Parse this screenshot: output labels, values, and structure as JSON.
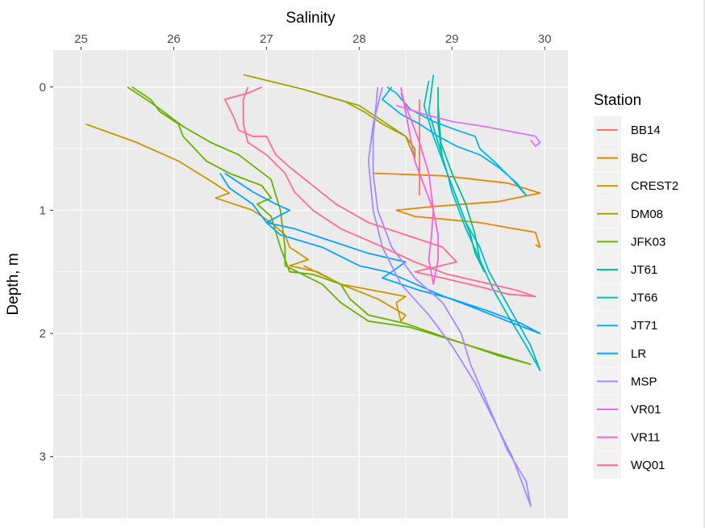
{
  "chart_data": {
    "type": "line",
    "xlabel": "Salinity",
    "ylabel": "Depth, m",
    "xlim": [
      24.7,
      30.25
    ],
    "ylim": [
      3.5,
      -0.3
    ],
    "xticks": [
      25,
      26,
      27,
      28,
      29,
      30
    ],
    "yticks": [
      0,
      1,
      2,
      3
    ],
    "x_axis_position": "top",
    "y_reversed": true,
    "grid": true,
    "legend": {
      "title": "Station",
      "position": "right"
    },
    "series": [
      {
        "name": "BB14",
        "color": "#F8766D",
        "points": [
          [
            28.65,
            0.1
          ],
          [
            28.65,
            0.4
          ],
          [
            28.65,
            0.7
          ],
          [
            28.65,
            0.88
          ]
        ]
      },
      {
        "name": "BC",
        "color": "#E58700",
        "points": [
          [
            28.15,
            0.7
          ],
          [
            28.9,
            0.72
          ],
          [
            29.6,
            0.78
          ],
          [
            29.95,
            0.86
          ],
          [
            29.5,
            0.93
          ],
          [
            28.8,
            0.97
          ],
          [
            28.4,
            1.0
          ],
          [
            28.6,
            1.05
          ],
          [
            29.3,
            1.1
          ],
          [
            29.9,
            1.18
          ],
          [
            29.95,
            1.3
          ],
          [
            29.9,
            1.28
          ]
        ]
      },
      {
        "name": "CREST2",
        "color": "#C99800",
        "points": [
          [
            25.05,
            0.3
          ],
          [
            25.6,
            0.45
          ],
          [
            26.05,
            0.6
          ],
          [
            26.35,
            0.74
          ],
          [
            26.6,
            0.86
          ],
          [
            26.45,
            0.9
          ],
          [
            26.65,
            0.95
          ],
          [
            26.85,
            1.0
          ],
          [
            27.05,
            1.1
          ],
          [
            27.2,
            1.2
          ],
          [
            27.25,
            1.3
          ],
          [
            27.45,
            1.4
          ],
          [
            27.25,
            1.45
          ],
          [
            27.55,
            1.5
          ],
          [
            27.8,
            1.6
          ],
          [
            28.2,
            1.72
          ],
          [
            28.5,
            1.85
          ],
          [
            28.45,
            1.9
          ],
          [
            28.4,
            1.75
          ],
          [
            28.5,
            1.7
          ],
          [
            27.8,
            1.6
          ],
          [
            27.4,
            1.45
          ]
        ]
      },
      {
        "name": "DM08",
        "color": "#A3A500",
        "points": [
          [
            26.75,
            -0.1
          ],
          [
            27.4,
            0.02
          ],
          [
            27.85,
            0.12
          ],
          [
            28.05,
            0.2
          ],
          [
            28.25,
            0.3
          ],
          [
            28.5,
            0.4
          ],
          [
            28.6,
            0.5
          ],
          [
            28.6,
            0.58
          ],
          [
            28.5,
            0.4
          ],
          [
            28.0,
            0.15
          ],
          [
            27.4,
            0.02
          ],
          [
            26.75,
            -0.1
          ]
        ]
      },
      {
        "name": "JFK03",
        "color": "#6BB100",
        "points": [
          [
            25.55,
            0.0
          ],
          [
            25.75,
            0.1
          ],
          [
            25.85,
            0.2
          ],
          [
            26.05,
            0.3
          ],
          [
            26.1,
            0.4
          ],
          [
            26.35,
            0.6
          ],
          [
            26.6,
            0.7
          ],
          [
            26.95,
            0.8
          ],
          [
            27.05,
            0.9
          ],
          [
            26.9,
            0.95
          ],
          [
            27.05,
            1.05
          ],
          [
            27.15,
            1.3
          ],
          [
            27.2,
            1.4
          ],
          [
            27.25,
            1.5
          ],
          [
            27.5,
            1.52
          ],
          [
            27.8,
            1.6
          ],
          [
            27.9,
            1.72
          ],
          [
            28.1,
            1.85
          ],
          [
            28.5,
            1.92
          ],
          [
            29.0,
            2.05
          ],
          [
            29.5,
            2.18
          ],
          [
            29.85,
            2.25
          ],
          [
            29.2,
            2.1
          ],
          [
            28.55,
            1.95
          ],
          [
            28.1,
            1.9
          ],
          [
            27.8,
            1.75
          ],
          [
            27.6,
            1.6
          ],
          [
            27.2,
            1.45
          ],
          [
            27.2,
            1.3
          ],
          [
            27.15,
            1.0
          ],
          [
            27.05,
            0.75
          ],
          [
            26.7,
            0.55
          ],
          [
            26.4,
            0.45
          ],
          [
            26.1,
            0.32
          ],
          [
            25.8,
            0.15
          ],
          [
            25.5,
            0.0
          ]
        ]
      },
      {
        "name": "JT61",
        "color": "#00C094",
        "points": [
          [
            28.85,
            0.0
          ],
          [
            28.85,
            0.3
          ],
          [
            28.9,
            0.6
          ],
          [
            29.0,
            0.8
          ],
          [
            29.1,
            1.0
          ],
          [
            29.2,
            1.2
          ],
          [
            29.25,
            1.35
          ],
          [
            29.35,
            1.5
          ],
          [
            29.3,
            1.4
          ],
          [
            29.25,
            1.2
          ],
          [
            29.15,
            0.95
          ],
          [
            29.0,
            0.7
          ],
          [
            28.88,
            0.45
          ],
          [
            28.85,
            0.15
          ]
        ]
      },
      {
        "name": "JT66",
        "color": "#00BFC4",
        "points": [
          [
            28.75,
            -0.05
          ],
          [
            28.7,
            0.15
          ],
          [
            28.8,
            0.4
          ],
          [
            28.9,
            0.6
          ],
          [
            29.0,
            0.8
          ],
          [
            29.05,
            0.9
          ],
          [
            29.15,
            1.1
          ],
          [
            29.3,
            1.3
          ],
          [
            29.4,
            1.5
          ],
          [
            29.55,
            1.7
          ],
          [
            29.7,
            1.9
          ],
          [
            29.85,
            2.1
          ],
          [
            29.95,
            2.3
          ],
          [
            29.8,
            2.1
          ],
          [
            29.6,
            1.85
          ],
          [
            29.45,
            1.65
          ],
          [
            29.3,
            1.4
          ],
          [
            29.15,
            1.15
          ],
          [
            29.0,
            0.85
          ],
          [
            28.95,
            0.7
          ],
          [
            28.85,
            0.45
          ],
          [
            28.75,
            0.2
          ],
          [
            28.8,
            -0.1
          ]
        ]
      },
      {
        "name": "JT71",
        "color": "#00B6EB",
        "points": [
          [
            28.35,
            0.0
          ],
          [
            28.25,
            0.1
          ],
          [
            28.45,
            0.22
          ],
          [
            28.65,
            0.3
          ],
          [
            28.85,
            0.4
          ],
          [
            29.05,
            0.48
          ],
          [
            29.3,
            0.55
          ],
          [
            29.5,
            0.65
          ],
          [
            29.7,
            0.78
          ],
          [
            29.8,
            0.88
          ],
          [
            29.65,
            0.75
          ],
          [
            29.45,
            0.6
          ],
          [
            29.3,
            0.5
          ],
          [
            29.25,
            0.4
          ],
          [
            29.05,
            0.35
          ],
          [
            28.8,
            0.28
          ],
          [
            28.55,
            0.18
          ],
          [
            28.4,
            0.05
          ],
          [
            28.3,
            0.0
          ]
        ]
      },
      {
        "name": "LR",
        "color": "#06A4FF",
        "points": [
          [
            26.55,
            0.7
          ],
          [
            26.85,
            0.85
          ],
          [
            27.1,
            0.95
          ],
          [
            27.25,
            1.0
          ],
          [
            27.0,
            1.1
          ],
          [
            27.3,
            1.15
          ],
          [
            27.7,
            1.25
          ],
          [
            28.1,
            1.35
          ],
          [
            28.5,
            1.42
          ],
          [
            28.35,
            1.5
          ],
          [
            28.25,
            1.55
          ],
          [
            28.65,
            1.65
          ],
          [
            29.0,
            1.72
          ],
          [
            29.4,
            1.82
          ],
          [
            29.75,
            1.92
          ],
          [
            29.95,
            2.0
          ],
          [
            29.6,
            1.9
          ],
          [
            29.2,
            1.78
          ],
          [
            28.85,
            1.68
          ],
          [
            28.55,
            1.58
          ],
          [
            28.3,
            1.5
          ],
          [
            28.0,
            1.45
          ],
          [
            27.6,
            1.3
          ],
          [
            27.15,
            1.2
          ],
          [
            27.0,
            1.1
          ],
          [
            26.85,
            0.95
          ],
          [
            26.6,
            0.82
          ],
          [
            26.5,
            0.7
          ]
        ]
      },
      {
        "name": "MSP",
        "color": "#A58AFF",
        "points": [
          [
            28.25,
            0.0
          ],
          [
            28.15,
            0.3
          ],
          [
            28.1,
            0.6
          ],
          [
            28.15,
            1.0
          ],
          [
            28.25,
            1.3
          ],
          [
            28.45,
            1.6
          ],
          [
            28.75,
            1.85
          ],
          [
            29.0,
            2.1
          ],
          [
            29.25,
            2.4
          ],
          [
            29.45,
            2.7
          ],
          [
            29.65,
            3.0
          ],
          [
            29.75,
            3.2
          ],
          [
            29.85,
            3.4
          ],
          [
            29.8,
            3.2
          ],
          [
            29.6,
            2.95
          ],
          [
            29.4,
            2.6
          ],
          [
            29.2,
            2.25
          ],
          [
            29.1,
            2.0
          ],
          [
            28.9,
            1.75
          ],
          [
            28.6,
            1.55
          ],
          [
            28.35,
            1.3
          ],
          [
            28.2,
            1.0
          ],
          [
            28.15,
            0.7
          ],
          [
            28.15,
            0.4
          ],
          [
            28.2,
            0.0
          ]
        ]
      },
      {
        "name": "VR01",
        "color": "#DF70F8",
        "points": [
          [
            28.4,
            0.15
          ],
          [
            28.7,
            0.22
          ],
          [
            29.0,
            0.28
          ],
          [
            29.35,
            0.32
          ],
          [
            29.7,
            0.37
          ],
          [
            29.9,
            0.4
          ],
          [
            29.95,
            0.45
          ],
          [
            29.9,
            0.48
          ],
          [
            29.85,
            0.43
          ]
        ]
      },
      {
        "name": "VR11",
        "color": "#FB61D7",
        "points": [
          [
            28.45,
            0.0
          ],
          [
            28.5,
            0.2
          ],
          [
            28.55,
            0.4
          ],
          [
            28.6,
            0.6
          ],
          [
            28.7,
            0.8
          ],
          [
            28.8,
            1.0
          ],
          [
            28.85,
            1.2
          ],
          [
            28.85,
            1.4
          ],
          [
            28.8,
            1.6
          ],
          [
            28.75,
            1.4
          ],
          [
            28.78,
            1.2
          ],
          [
            28.8,
            1.0
          ],
          [
            28.75,
            0.7
          ],
          [
            28.65,
            0.45
          ],
          [
            28.55,
            0.25
          ],
          [
            28.45,
            0.05
          ]
        ]
      },
      {
        "name": "WQ01",
        "color": "#FF6C91",
        "points": [
          [
            26.95,
            0.0
          ],
          [
            26.8,
            0.05
          ],
          [
            26.55,
            0.1
          ],
          [
            26.65,
            0.25
          ],
          [
            26.7,
            0.35
          ],
          [
            26.85,
            0.4
          ],
          [
            27.0,
            0.4
          ],
          [
            27.1,
            0.55
          ],
          [
            27.25,
            0.65
          ],
          [
            27.5,
            0.8
          ],
          [
            27.75,
            0.95
          ],
          [
            28.1,
            1.1
          ],
          [
            28.5,
            1.2
          ],
          [
            28.9,
            1.3
          ],
          [
            29.05,
            1.42
          ],
          [
            28.6,
            1.5
          ],
          [
            28.9,
            1.55
          ],
          [
            29.3,
            1.62
          ],
          [
            29.6,
            1.68
          ],
          [
            29.9,
            1.7
          ],
          [
            29.7,
            1.65
          ],
          [
            29.3,
            1.58
          ],
          [
            28.95,
            1.52
          ],
          [
            28.6,
            1.42
          ],
          [
            28.2,
            1.28
          ],
          [
            27.8,
            1.15
          ],
          [
            27.5,
            1.0
          ],
          [
            27.3,
            0.85
          ],
          [
            27.2,
            0.7
          ],
          [
            27.0,
            0.55
          ],
          [
            26.8,
            0.45
          ],
          [
            26.75,
            0.3
          ],
          [
            26.75,
            0.1
          ],
          [
            26.8,
            0.0
          ]
        ]
      }
    ]
  }
}
